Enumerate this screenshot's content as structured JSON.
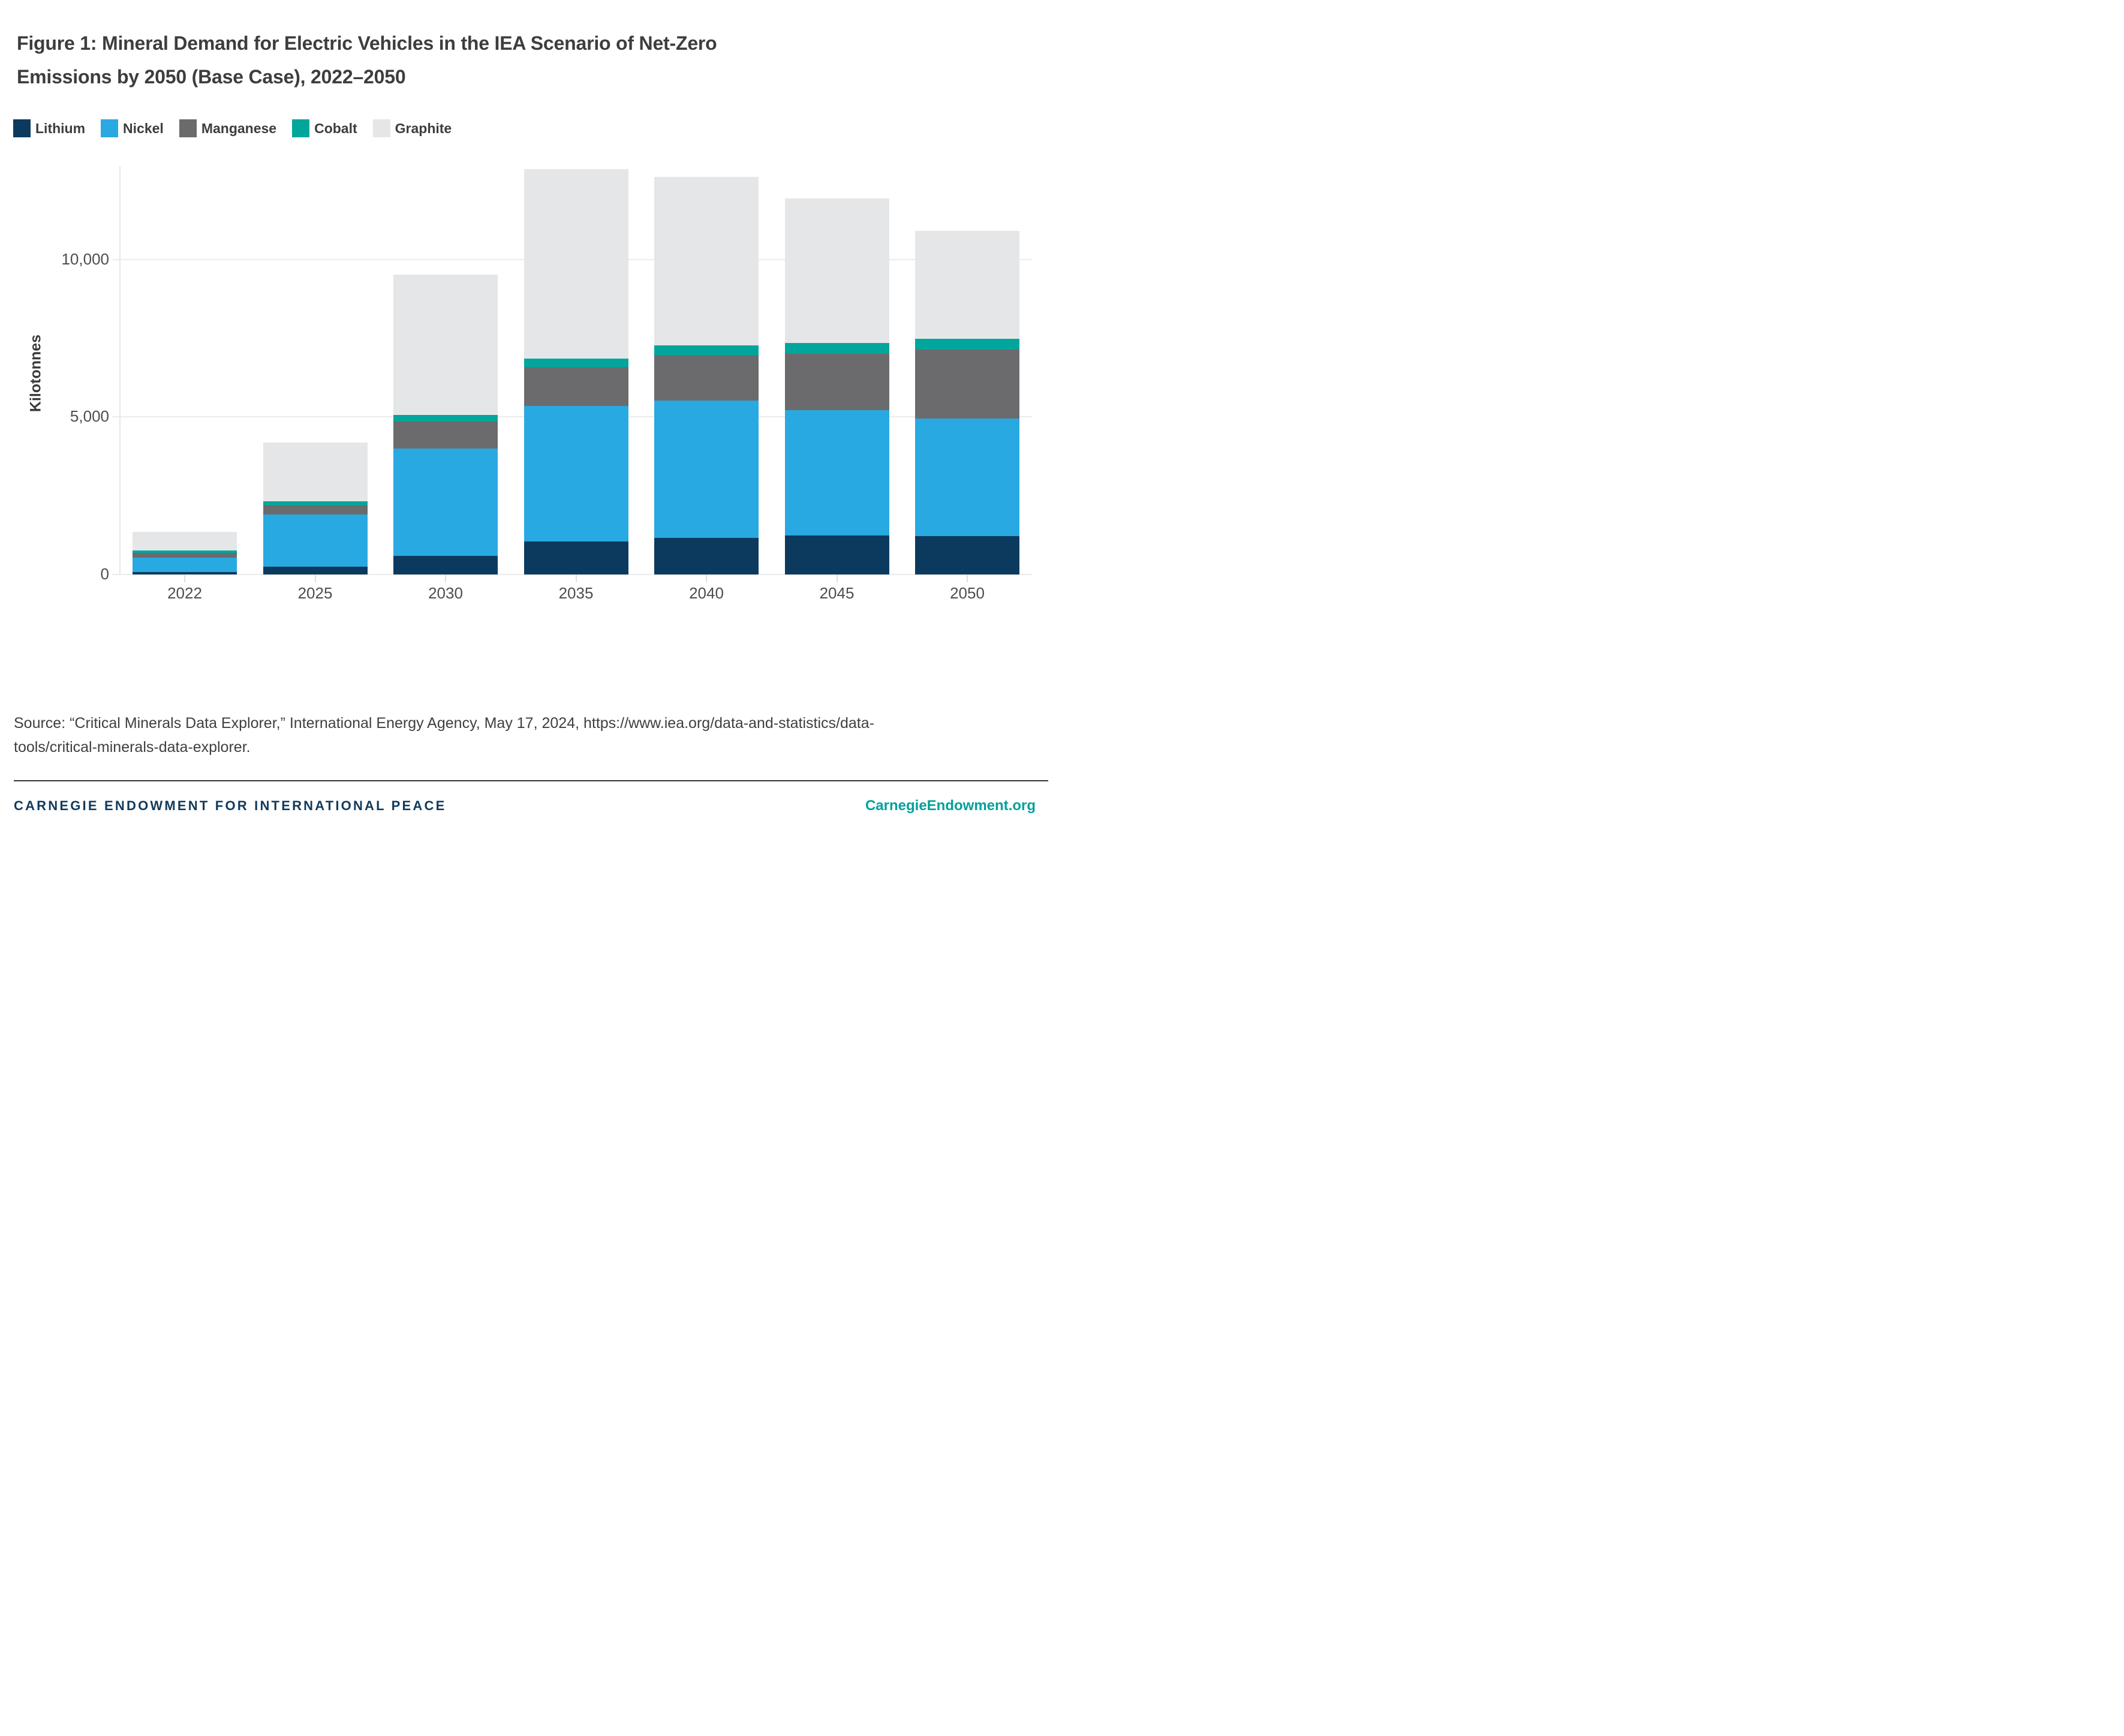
{
  "title": {
    "line1": "Figure 1: Mineral Demand for Electric Vehicles in the IEA Scenario of Net-Zero",
    "line2": "Emissions by 2050 (Base Case), 2022–2050"
  },
  "chart_data": {
    "type": "bar",
    "stacked": true,
    "categories": [
      "2022",
      "2025",
      "2030",
      "2035",
      "2040",
      "2045",
      "2050"
    ],
    "series": [
      {
        "name": "Lithium",
        "color": "#0b3a5e",
        "values": [
          75,
          240,
          590,
          1050,
          1165,
          1245,
          1210
        ]
      },
      {
        "name": "Nickel",
        "color": "#29a9e1",
        "values": [
          450,
          1665,
          3410,
          4310,
          4350,
          3970,
          3740
        ]
      },
      {
        "name": "Manganese",
        "color": "#6b6b6d",
        "values": [
          170,
          295,
          865,
          1230,
          1465,
          1800,
          2200
        ]
      },
      {
        "name": "Cobalt",
        "color": "#00a69c",
        "values": [
          75,
          125,
          210,
          270,
          295,
          335,
          335
        ]
      },
      {
        "name": "Graphite",
        "color": "#e5e6e8",
        "values": [
          580,
          1875,
          4455,
          6015,
          5350,
          4590,
          3430
        ]
      }
    ],
    "totals": [
      1350,
      4200,
      9530,
      12875,
      12625,
      11940,
      10915
    ],
    "xlabel": "",
    "ylabel": "Kilotonnes",
    "ylim": [
      0,
      12970
    ],
    "y_ticks": [
      {
        "value": 0,
        "label": "0"
      },
      {
        "value": 5000,
        "label": "5,000"
      },
      {
        "value": 10000,
        "label": "10,000"
      }
    ],
    "grid": "horizontal",
    "legend_position": "top-left",
    "stack_order_bottom_to_top": [
      "Lithium",
      "Nickel",
      "Manganese",
      "Cobalt",
      "Graphite"
    ]
  },
  "source": {
    "line1": "Source: “Critical Minerals Data Explorer,” International Energy Agency, May 17, 2024, https://www.iea.org/data-and-statistics/data-",
    "line2": "tools/critical-minerals-data-explorer."
  },
  "footer": {
    "org": "CARNEGIE ENDOWMENT FOR INTERNATIONAL PEACE",
    "site": "CarnegieEndowment.org"
  }
}
